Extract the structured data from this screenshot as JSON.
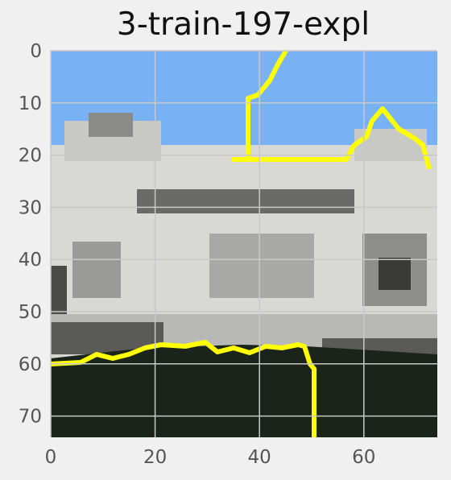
{
  "figure": {
    "title": "3-train-197-expl"
  },
  "axes": {
    "x_ticks": [
      {
        "value": 0,
        "label": "0"
      },
      {
        "value": 20,
        "label": "20"
      },
      {
        "value": 40,
        "label": "40"
      },
      {
        "value": 60,
        "label": "60"
      }
    ],
    "y_ticks": [
      {
        "value": 0,
        "label": "0"
      },
      {
        "value": 10,
        "label": "10"
      },
      {
        "value": 20,
        "label": "20"
      },
      {
        "value": 30,
        "label": "30"
      },
      {
        "value": 40,
        "label": "40"
      },
      {
        "value": 50,
        "label": "50"
      },
      {
        "value": 60,
        "label": "60"
      },
      {
        "value": 70,
        "label": "70"
      }
    ],
    "xlim": [
      0,
      74
    ],
    "ylim": [
      74,
      0
    ],
    "grid": true
  },
  "colors": {
    "sky": "#78b2f4",
    "building_light": "#d8d8d4",
    "building_mid": "#a8a8a6",
    "building_dark": "#4a4a48",
    "ground": "#1b241a",
    "explanation_outline": "#ffff00",
    "grid": "#c8c8c8"
  },
  "image": {
    "description_icon": "monument-photo-icon"
  }
}
